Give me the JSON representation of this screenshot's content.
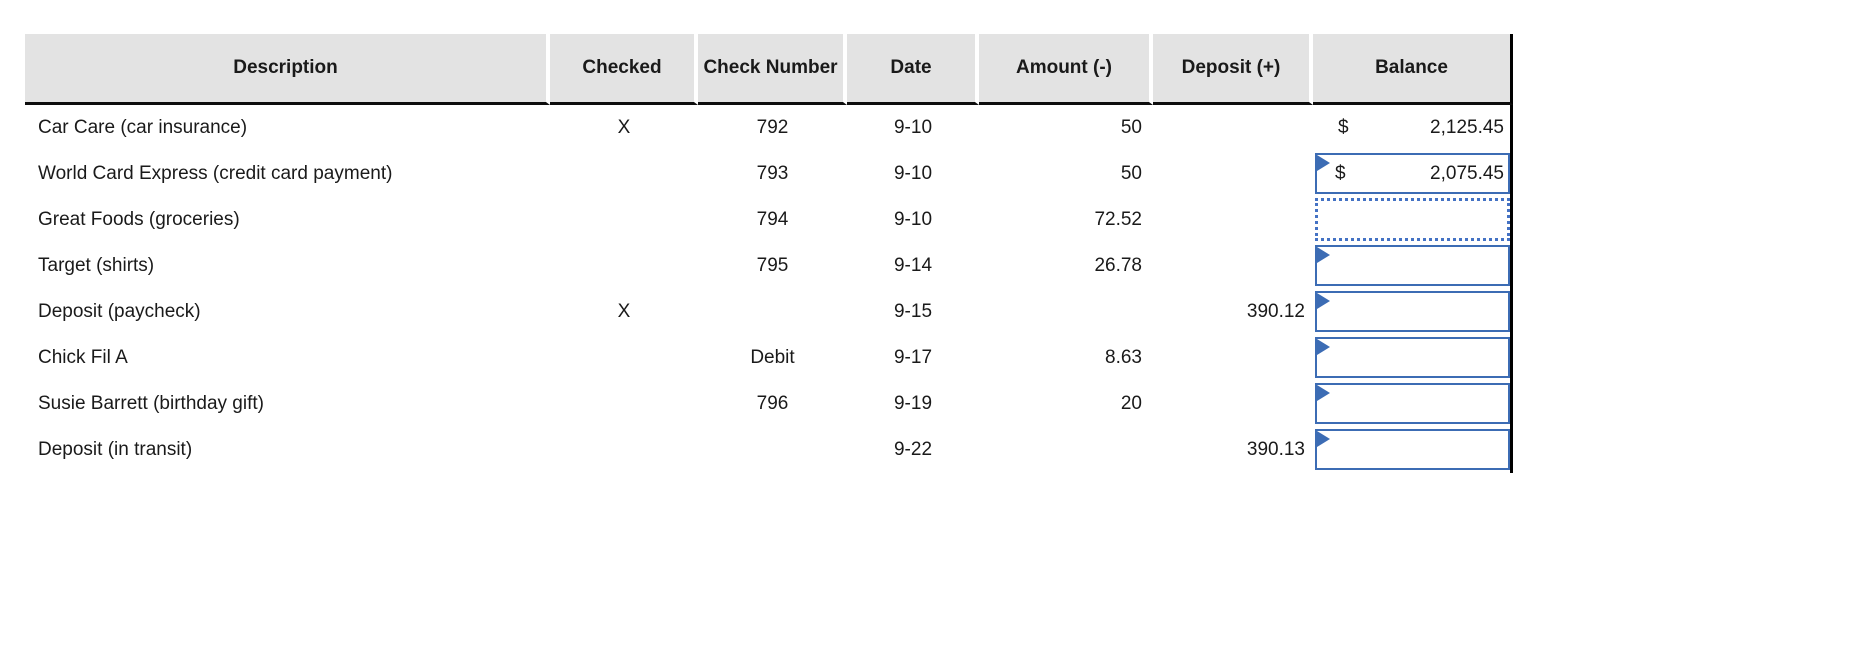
{
  "sheet": {
    "header": {
      "description": "Description",
      "checked": "Checked",
      "check_number": "Check Number",
      "date": "Date",
      "amount": "Amount (-)",
      "deposit": "Deposit (+)",
      "balance": "Balance"
    },
    "rows": [
      {
        "description": "Car Care (car insurance)",
        "checked": "X",
        "check_number": "792",
        "date": "9-10",
        "amount": "50",
        "deposit": "",
        "balance_currency": "$",
        "balance_value": "2,125.45"
      },
      {
        "description": "World Card Express (credit card payment)",
        "checked": "",
        "check_number": "793",
        "date": "9-10",
        "amount": "50",
        "deposit": "",
        "balance_currency": "$",
        "balance_value": "2,075.45"
      },
      {
        "description": "Great Foods (groceries)",
        "checked": "",
        "check_number": "794",
        "date": "9-10",
        "amount": "72.52",
        "deposit": "",
        "balance_currency": "",
        "balance_value": ""
      },
      {
        "description": "Target (shirts)",
        "checked": "",
        "check_number": "795",
        "date": "9-14",
        "amount": "26.78",
        "deposit": "",
        "balance_currency": "",
        "balance_value": ""
      },
      {
        "description": "Deposit (paycheck)",
        "checked": "X",
        "check_number": "",
        "date": "9-15",
        "amount": "",
        "deposit": "390.12",
        "balance_currency": "",
        "balance_value": ""
      },
      {
        "description": "Chick Fil A",
        "checked": "",
        "check_number": "Debit",
        "date": "9-17",
        "amount": "8.63",
        "deposit": "",
        "balance_currency": "",
        "balance_value": ""
      },
      {
        "description": "Susie Barrett (birthday gift)",
        "checked": "",
        "check_number": "796",
        "date": "9-19",
        "amount": "20",
        "deposit": "",
        "balance_currency": "",
        "balance_value": ""
      },
      {
        "description": "Deposit (in transit)",
        "checked": "",
        "check_number": "",
        "date": "9-22",
        "amount": "",
        "deposit": "390.13",
        "balance_currency": "",
        "balance_value": ""
      }
    ]
  },
  "colors": {
    "accent_blue": "#3c6cb4",
    "selection_blue": "#4472c4",
    "header_gray": "#e3e3e3",
    "grid_black": "#000000",
    "text": "#1a1a1a"
  }
}
